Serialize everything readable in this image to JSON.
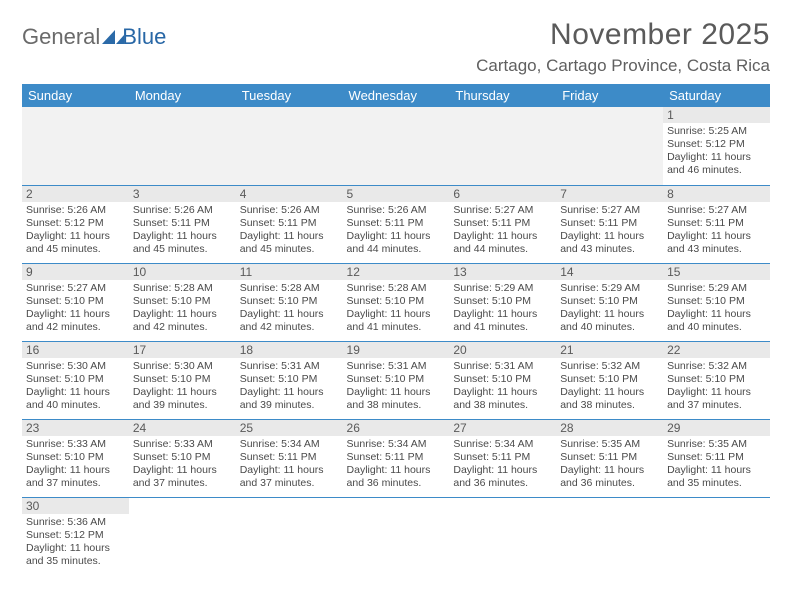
{
  "brand": {
    "general": "General",
    "blue": "Blue"
  },
  "title": "November 2025",
  "location": "Cartago, Cartago Province, Costa Rica",
  "colors": {
    "header_bg": "#3d8bc8",
    "header_fg": "#ffffff",
    "daynum_bg": "#e9e9e9",
    "blank_bg": "#f2f2f2",
    "rule": "#3d8bc8",
    "text": "#4a4a4a",
    "title_fg": "#5a5a5a",
    "brand_grey": "#6a6a6a",
    "brand_blue": "#2867a6"
  },
  "dayHeaders": [
    "Sunday",
    "Monday",
    "Tuesday",
    "Wednesday",
    "Thursday",
    "Friday",
    "Saturday"
  ],
  "weeks": [
    [
      null,
      null,
      null,
      null,
      null,
      null,
      {
        "n": "1",
        "sr": "5:25 AM",
        "ss": "5:12 PM",
        "dl": "11 hours and 46 minutes."
      }
    ],
    [
      {
        "n": "2",
        "sr": "5:26 AM",
        "ss": "5:12 PM",
        "dl": "11 hours and 45 minutes."
      },
      {
        "n": "3",
        "sr": "5:26 AM",
        "ss": "5:11 PM",
        "dl": "11 hours and 45 minutes."
      },
      {
        "n": "4",
        "sr": "5:26 AM",
        "ss": "5:11 PM",
        "dl": "11 hours and 45 minutes."
      },
      {
        "n": "5",
        "sr": "5:26 AM",
        "ss": "5:11 PM",
        "dl": "11 hours and 44 minutes."
      },
      {
        "n": "6",
        "sr": "5:27 AM",
        "ss": "5:11 PM",
        "dl": "11 hours and 44 minutes."
      },
      {
        "n": "7",
        "sr": "5:27 AM",
        "ss": "5:11 PM",
        "dl": "11 hours and 43 minutes."
      },
      {
        "n": "8",
        "sr": "5:27 AM",
        "ss": "5:11 PM",
        "dl": "11 hours and 43 minutes."
      }
    ],
    [
      {
        "n": "9",
        "sr": "5:27 AM",
        "ss": "5:10 PM",
        "dl": "11 hours and 42 minutes."
      },
      {
        "n": "10",
        "sr": "5:28 AM",
        "ss": "5:10 PM",
        "dl": "11 hours and 42 minutes."
      },
      {
        "n": "11",
        "sr": "5:28 AM",
        "ss": "5:10 PM",
        "dl": "11 hours and 42 minutes."
      },
      {
        "n": "12",
        "sr": "5:28 AM",
        "ss": "5:10 PM",
        "dl": "11 hours and 41 minutes."
      },
      {
        "n": "13",
        "sr": "5:29 AM",
        "ss": "5:10 PM",
        "dl": "11 hours and 41 minutes."
      },
      {
        "n": "14",
        "sr": "5:29 AM",
        "ss": "5:10 PM",
        "dl": "11 hours and 40 minutes."
      },
      {
        "n": "15",
        "sr": "5:29 AM",
        "ss": "5:10 PM",
        "dl": "11 hours and 40 minutes."
      }
    ],
    [
      {
        "n": "16",
        "sr": "5:30 AM",
        "ss": "5:10 PM",
        "dl": "11 hours and 40 minutes."
      },
      {
        "n": "17",
        "sr": "5:30 AM",
        "ss": "5:10 PM",
        "dl": "11 hours and 39 minutes."
      },
      {
        "n": "18",
        "sr": "5:31 AM",
        "ss": "5:10 PM",
        "dl": "11 hours and 39 minutes."
      },
      {
        "n": "19",
        "sr": "5:31 AM",
        "ss": "5:10 PM",
        "dl": "11 hours and 38 minutes."
      },
      {
        "n": "20",
        "sr": "5:31 AM",
        "ss": "5:10 PM",
        "dl": "11 hours and 38 minutes."
      },
      {
        "n": "21",
        "sr": "5:32 AM",
        "ss": "5:10 PM",
        "dl": "11 hours and 38 minutes."
      },
      {
        "n": "22",
        "sr": "5:32 AM",
        "ss": "5:10 PM",
        "dl": "11 hours and 37 minutes."
      }
    ],
    [
      {
        "n": "23",
        "sr": "5:33 AM",
        "ss": "5:10 PM",
        "dl": "11 hours and 37 minutes."
      },
      {
        "n": "24",
        "sr": "5:33 AM",
        "ss": "5:10 PM",
        "dl": "11 hours and 37 minutes."
      },
      {
        "n": "25",
        "sr": "5:34 AM",
        "ss": "5:11 PM",
        "dl": "11 hours and 37 minutes."
      },
      {
        "n": "26",
        "sr": "5:34 AM",
        "ss": "5:11 PM",
        "dl": "11 hours and 36 minutes."
      },
      {
        "n": "27",
        "sr": "5:34 AM",
        "ss": "5:11 PM",
        "dl": "11 hours and 36 minutes."
      },
      {
        "n": "28",
        "sr": "5:35 AM",
        "ss": "5:11 PM",
        "dl": "11 hours and 36 minutes."
      },
      {
        "n": "29",
        "sr": "5:35 AM",
        "ss": "5:11 PM",
        "dl": "11 hours and 35 minutes."
      }
    ],
    [
      {
        "n": "30",
        "sr": "5:36 AM",
        "ss": "5:12 PM",
        "dl": "11 hours and 35 minutes."
      },
      null,
      null,
      null,
      null,
      null,
      null
    ]
  ],
  "labels": {
    "sunrise": "Sunrise: ",
    "sunset": "Sunset: ",
    "daylight": "Daylight: "
  }
}
